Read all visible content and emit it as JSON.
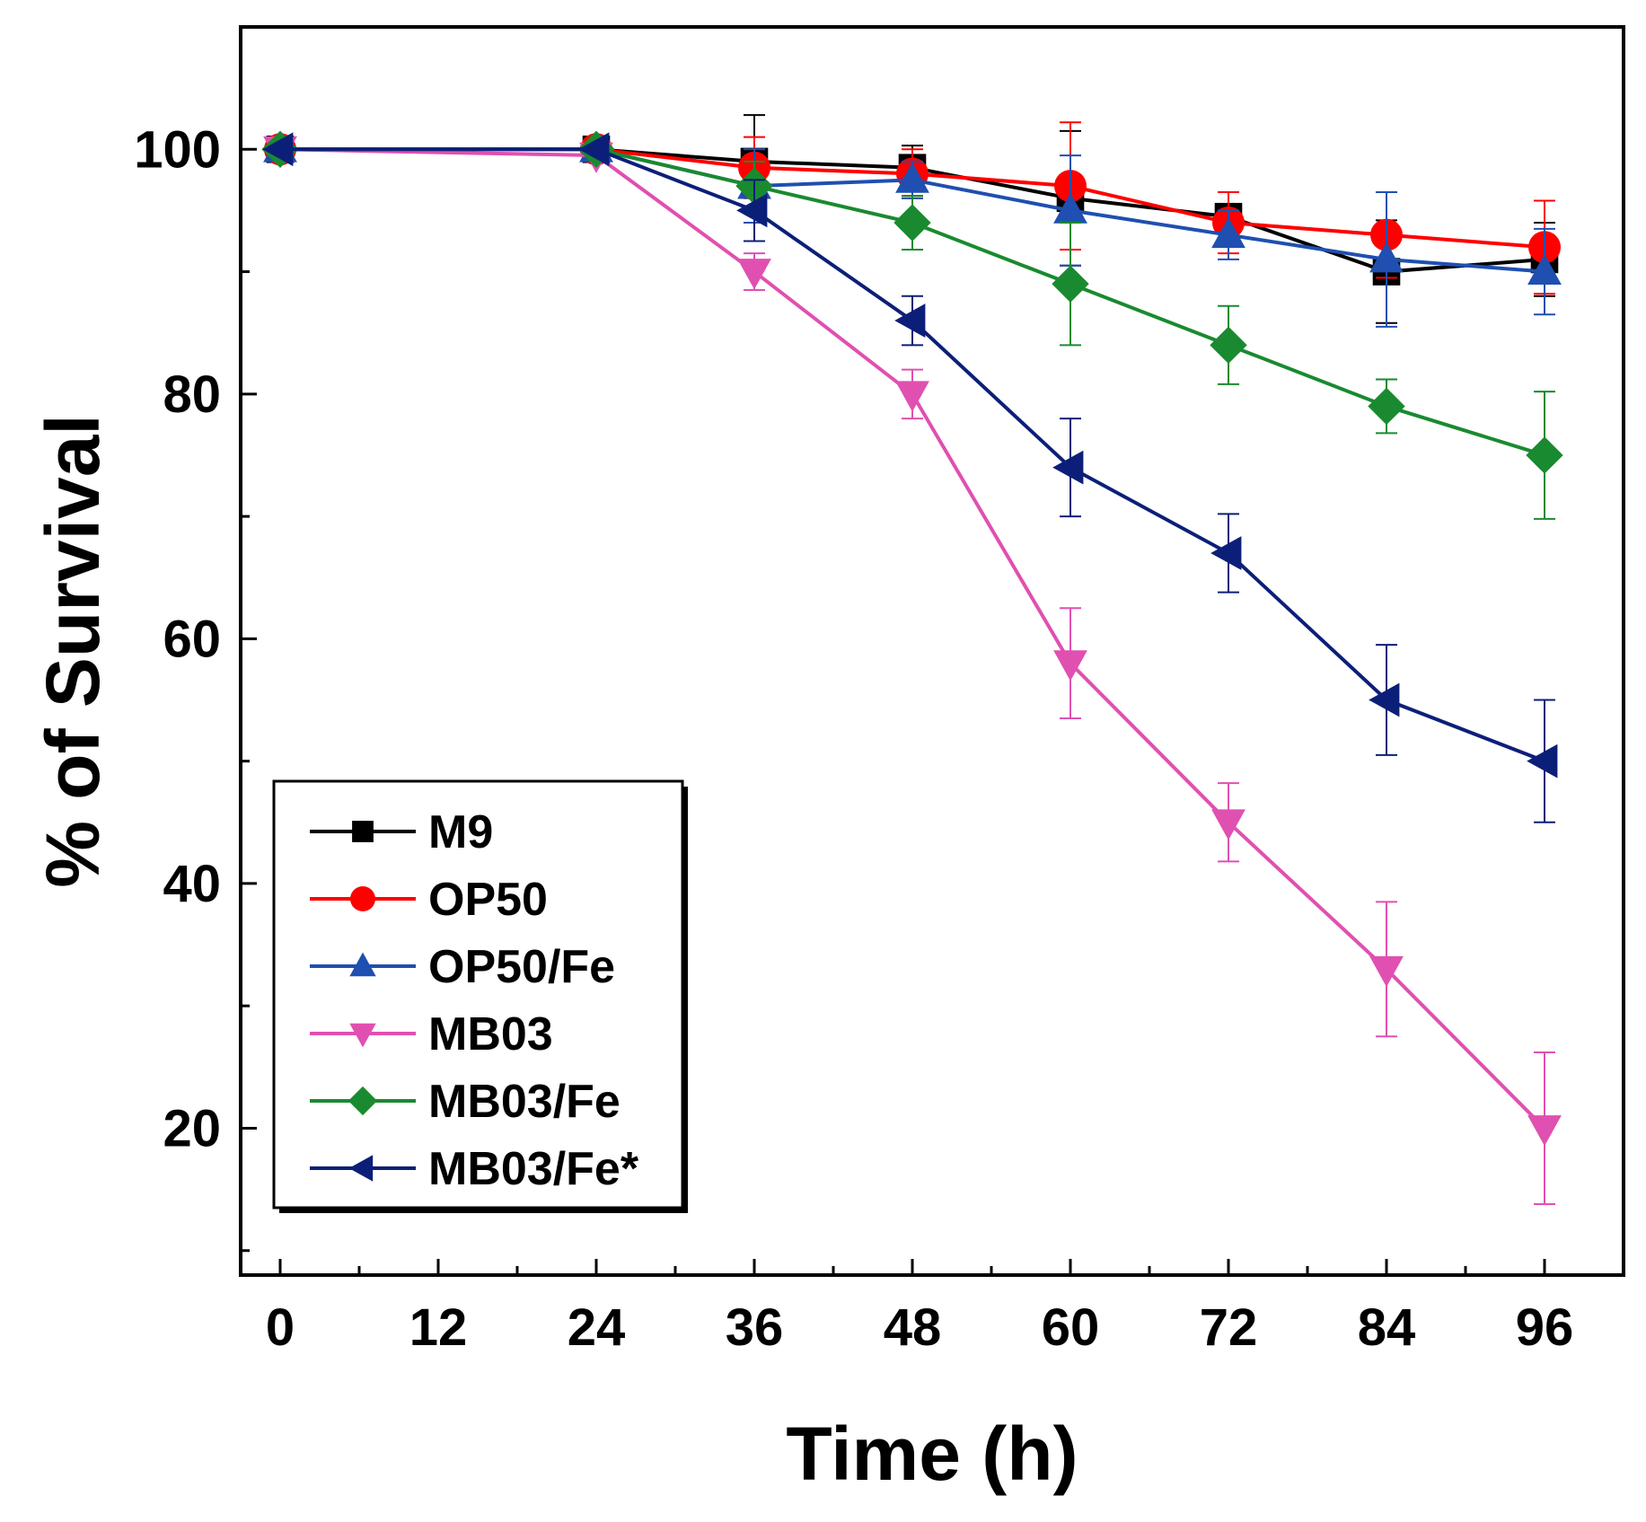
{
  "chart_data": {
    "type": "line",
    "title": "",
    "xlabel": "Time (h)",
    "ylabel": "% of Survival",
    "xlim": [
      -3,
      102
    ],
    "ylim": [
      8,
      110
    ],
    "xticks": [
      0,
      12,
      24,
      36,
      48,
      60,
      72,
      84,
      96
    ],
    "xtick_labels": [
      "0",
      "12",
      "24",
      "36",
      "48",
      "60",
      "72",
      "84",
      "96"
    ],
    "yticks": [
      20,
      40,
      60,
      80,
      100
    ],
    "ytick_labels": [
      "20",
      "40",
      "60",
      "80",
      "100"
    ],
    "grid": false,
    "legend_position": "bottom-left",
    "x": [
      0,
      24,
      36,
      48,
      60,
      72,
      84,
      96
    ],
    "series": [
      {
        "name": "M9",
        "color": "#000000",
        "marker": "square",
        "values": [
          100,
          100,
          99,
          98.5,
          96,
          94.5,
          90,
          91
        ],
        "errors": [
          0,
          0,
          3.8,
          1.8,
          5.5,
          2,
          4.2,
          3
        ]
      },
      {
        "name": "OP50",
        "color": "#ff0000",
        "marker": "circle",
        "values": [
          100,
          100,
          98.5,
          98,
          97,
          94,
          93,
          92
        ],
        "errors": [
          0,
          0,
          2.5,
          2,
          5.2,
          2.5,
          3.5,
          3.8
        ]
      },
      {
        "name": "OP50/Fe",
        "color": "#1f4fb0",
        "marker": "triangle-up",
        "values": [
          100,
          100,
          97,
          97.5,
          95,
          93,
          91,
          90
        ],
        "errors": [
          0,
          0,
          3,
          1.5,
          4.5,
          2,
          5.5,
          3.5
        ]
      },
      {
        "name": "MB03",
        "color": "#e050b0",
        "marker": "triangle-down",
        "values": [
          100,
          99.5,
          90,
          80,
          58,
          45,
          33,
          20
        ],
        "errors": [
          0,
          0,
          1.5,
          2,
          4.5,
          3.2,
          5.5,
          6.2
        ]
      },
      {
        "name": "MB03/Fe",
        "color": "#1a8a30",
        "marker": "diamond",
        "values": [
          100,
          100,
          97,
          94,
          89,
          84,
          79,
          75
        ],
        "errors": [
          0,
          0,
          2,
          2.2,
          5,
          3.2,
          2.2,
          5.2
        ]
      },
      {
        "name": "MB03/Fe*",
        "color": "#0c1f78",
        "marker": "triangle-left",
        "values": [
          100,
          100,
          95,
          86,
          74,
          67,
          55,
          50
        ],
        "errors": [
          0,
          0,
          2.5,
          2,
          4,
          3.2,
          4.5,
          5
        ]
      }
    ]
  }
}
